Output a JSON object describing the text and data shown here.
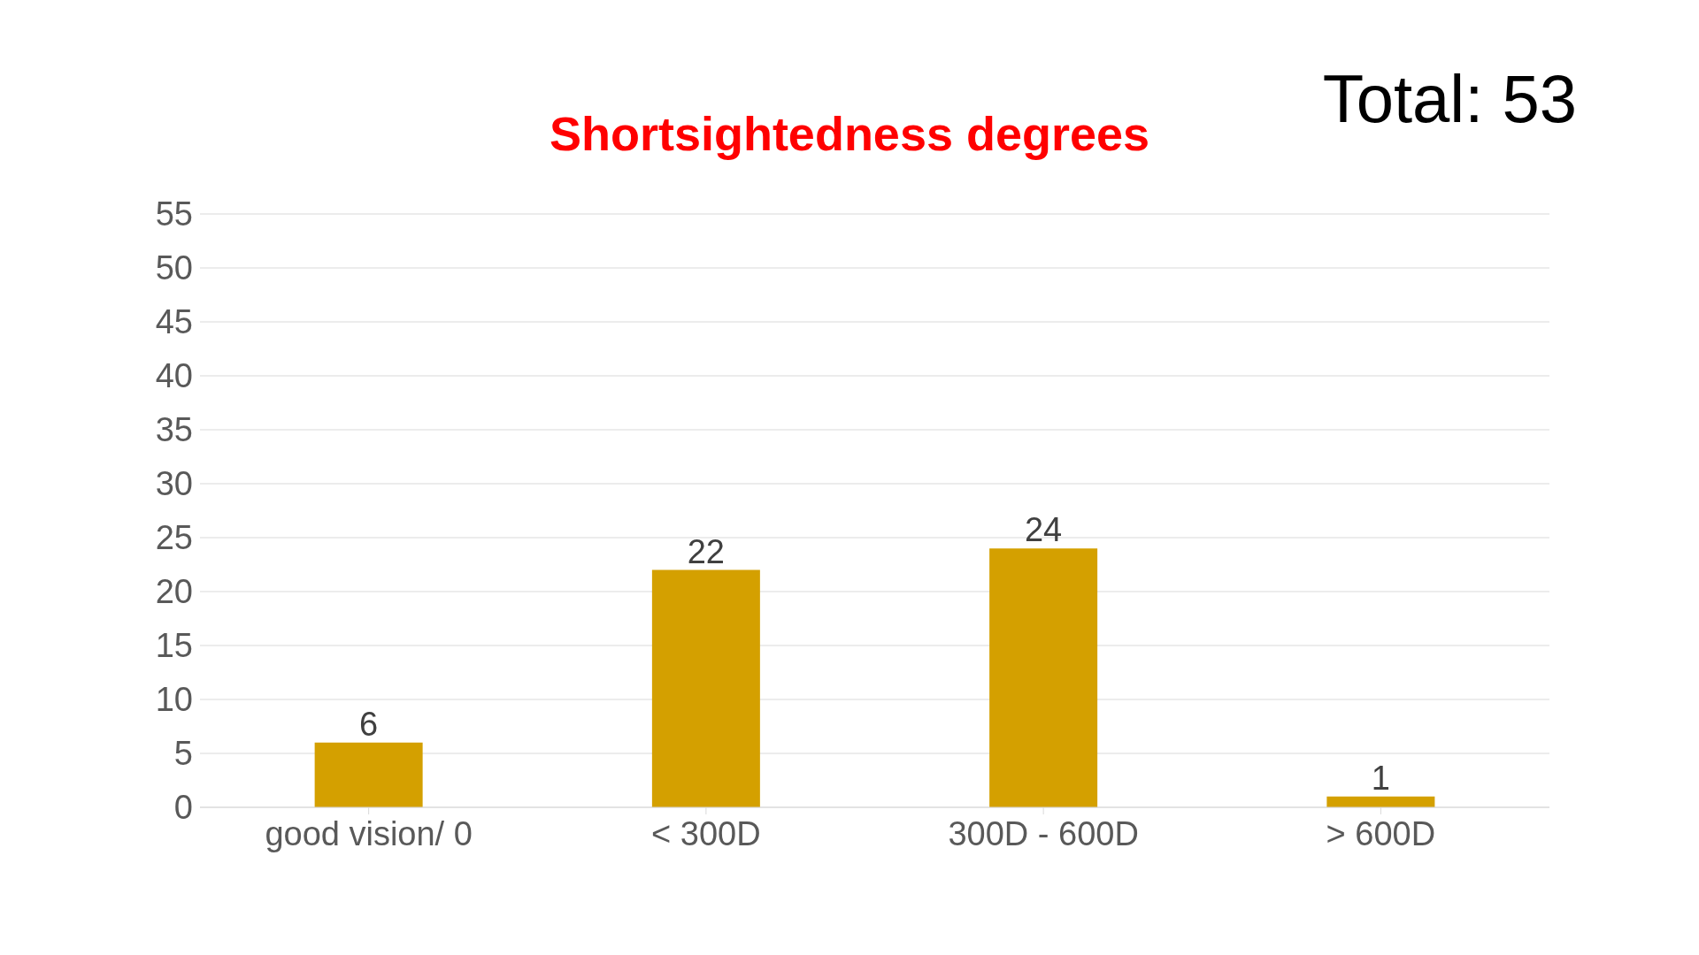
{
  "chart_data": {
    "type": "bar",
    "title": "Shortsightedness degrees",
    "annotations": [
      "Total: 53"
    ],
    "categories": [
      "good vision/ 0",
      "< 300D",
      "300D - 600D",
      "> 600D"
    ],
    "values": [
      6,
      22,
      24,
      1
    ],
    "color": "#d4a000",
    "ylim": [
      0,
      55
    ],
    "yticks": [
      0,
      5,
      10,
      15,
      20,
      25,
      30,
      35,
      40,
      45,
      50,
      55
    ],
    "grid": "y",
    "data_labels": true
  }
}
